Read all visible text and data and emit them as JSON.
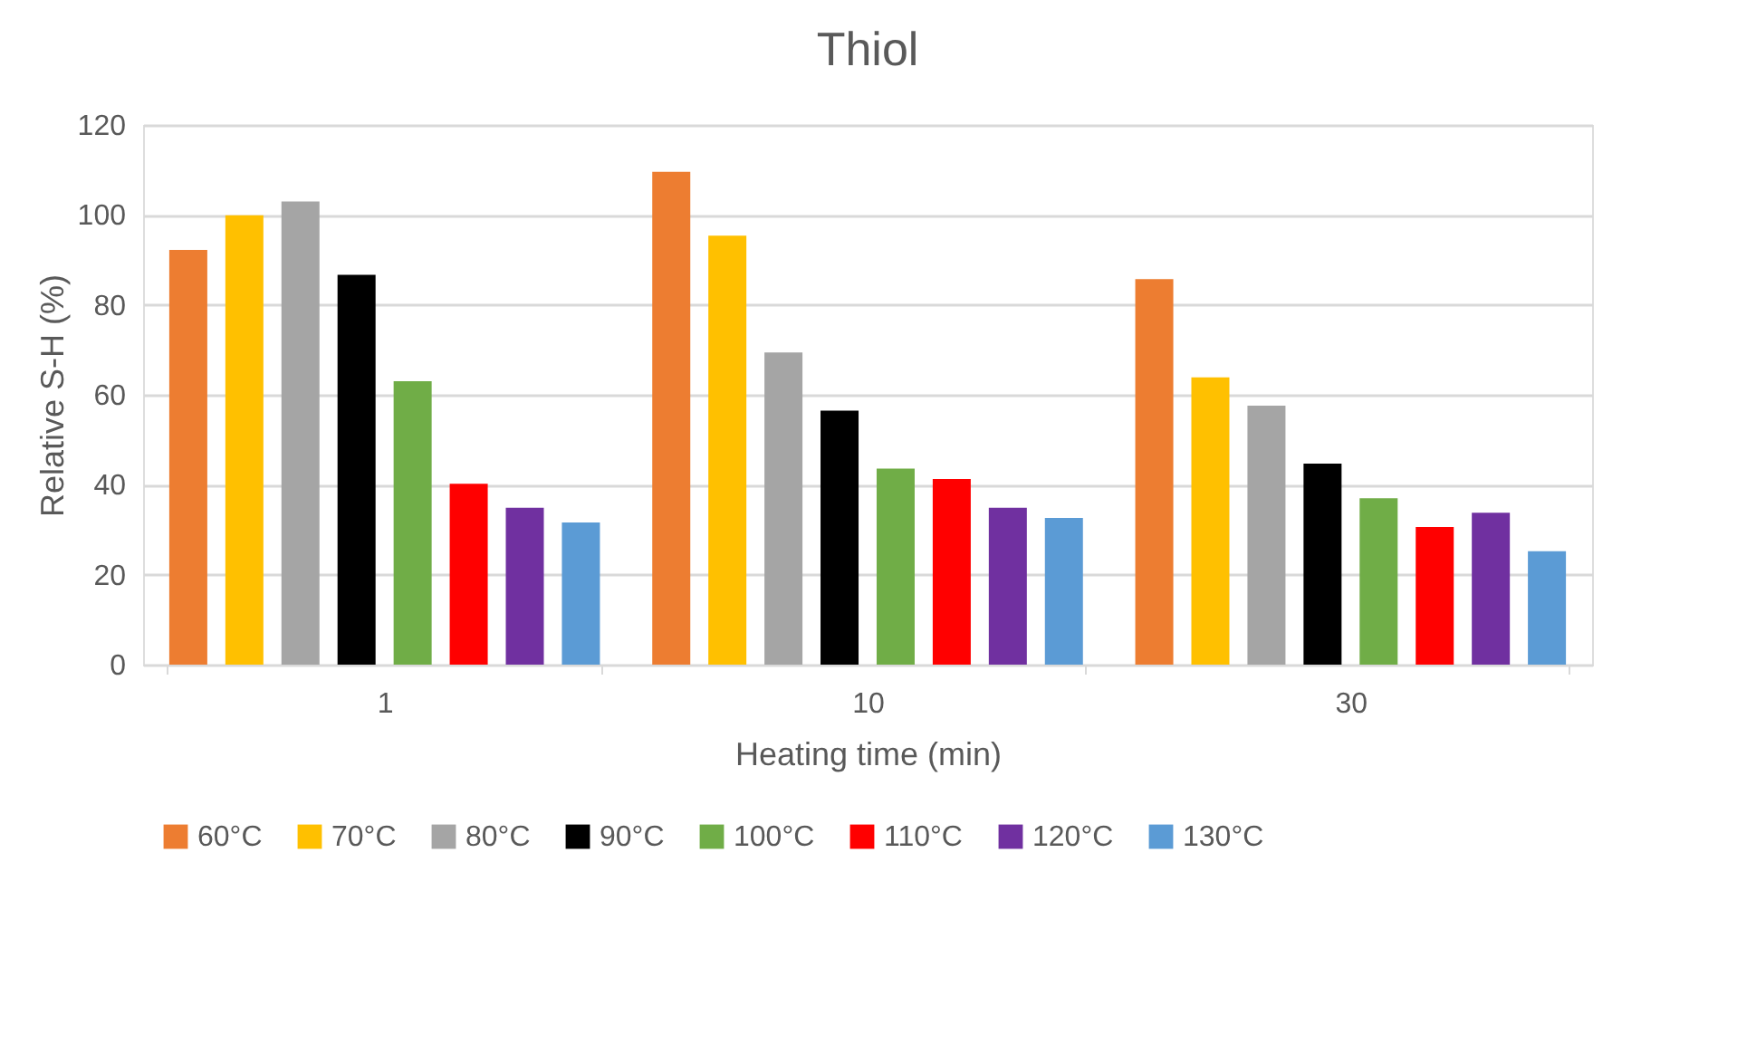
{
  "chart_data": {
    "type": "bar",
    "title": "Thiol",
    "xlabel": "Heating time (min)",
    "ylabel": "Relative S-H (%)",
    "categories": [
      "1",
      "10",
      "30"
    ],
    "series": [
      {
        "name": "60°C",
        "color": "#ed7d31",
        "values": [
          92.2,
          109.6,
          85.7
        ]
      },
      {
        "name": "70°C",
        "color": "#ffc000",
        "values": [
          99.9,
          95.4,
          63.9
        ]
      },
      {
        "name": "80°C",
        "color": "#a5a5a5",
        "values": [
          103,
          69.4,
          57.6
        ]
      },
      {
        "name": "90°C",
        "color": "#000000",
        "values": [
          86.7,
          56.5,
          44.7
        ]
      },
      {
        "name": "100°C",
        "color": "#70ad47",
        "values": [
          63,
          43.6,
          37
        ]
      },
      {
        "name": "110°C",
        "color": "#ff0000",
        "values": [
          40.2,
          41.3,
          30.6
        ]
      },
      {
        "name": "120°C",
        "color": "#7030a0",
        "values": [
          34.9,
          34.9,
          33.8
        ]
      },
      {
        "name": "130°C",
        "color": "#5b9bd5",
        "values": [
          31.6,
          32.6,
          25.2
        ]
      }
    ],
    "ylim": [
      0,
      120
    ],
    "yticks": [
      0,
      20,
      40,
      60,
      80,
      100,
      120
    ],
    "grid": "y",
    "legend": "bottom"
  }
}
